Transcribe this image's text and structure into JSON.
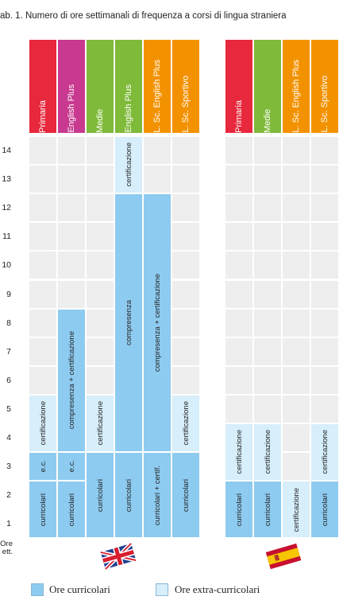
{
  "title": "ab. 1.  Numero di ore settimanali di frequenza a corsi di lingua straniera",
  "hours_axis": {
    "labels": [
      "14",
      "13",
      "12",
      "11",
      "10",
      "9",
      "8",
      "7",
      "6",
      "5",
      "4",
      "3",
      "2",
      "1"
    ],
    "footer": [
      "Ore",
      "ett."
    ]
  },
  "colors": {
    "red": "#e8283c",
    "purple": "#c8398f",
    "green": "#7fba3a",
    "orange": "#f39200",
    "curricolari": "#8ecbf0",
    "extra": "#d7eefb",
    "empty": "#eeeeee"
  },
  "english_group": {
    "flag": "uk-flag-icon",
    "columns": [
      {
        "label": "Primaria",
        "color": "red",
        "bars": [
          {
            "label": "curricolari",
            "from": 1,
            "to": 2,
            "kind": "curricolari"
          },
          {
            "label": "e.c.",
            "from": 3,
            "to": 3,
            "kind": "curricolari"
          },
          {
            "label": "certificazione",
            "from": 4,
            "to": 5,
            "kind": "extra"
          }
        ]
      },
      {
        "label": "English Plus",
        "color": "purple",
        "bars": [
          {
            "label": "curricolari",
            "from": 1,
            "to": 2,
            "kind": "curricolari"
          },
          {
            "label": "e.c.",
            "from": 3,
            "to": 3,
            "kind": "curricolari"
          },
          {
            "label": "compresenza + certificazione",
            "from": 4,
            "to": 8,
            "kind": "curricolari"
          }
        ]
      },
      {
        "label": "Medie",
        "color": "green",
        "bars": [
          {
            "label": "curricolari",
            "from": 1,
            "to": 3,
            "kind": "curricolari"
          },
          {
            "label": "certificazione",
            "from": 4,
            "to": 5,
            "kind": "extra"
          }
        ]
      },
      {
        "label": "English Plus",
        "color": "green",
        "bars": [
          {
            "label": "curricolari",
            "from": 1,
            "to": 3,
            "kind": "curricolari"
          },
          {
            "label": "compresenza",
            "from": 4,
            "to": 12,
            "kind": "curricolari"
          },
          {
            "label": "certificazione",
            "from": 13,
            "to": 14,
            "kind": "extra"
          }
        ]
      },
      {
        "label": "L. Sc. English Plus",
        "color": "orange",
        "bars": [
          {
            "label": "curricolari + certif.",
            "from": 1,
            "to": 3,
            "kind": "curricolari"
          },
          {
            "label": "compresenza + certificazione",
            "from": 4,
            "to": 12,
            "kind": "curricolari"
          }
        ]
      },
      {
        "label": "L. Sc. Sportivo",
        "color": "orange",
        "bars": [
          {
            "label": "curricolari",
            "from": 1,
            "to": 3,
            "kind": "curricolari"
          },
          {
            "label": "certificazione",
            "from": 4,
            "to": 5,
            "kind": "extra"
          }
        ]
      }
    ]
  },
  "spanish_group": {
    "flag": "spain-flag-icon",
    "columns": [
      {
        "label": "Primaria",
        "color": "red",
        "bars": [
          {
            "label": "curricolari",
            "from": 1,
            "to": 2,
            "kind": "curricolari"
          },
          {
            "label": "certificazione",
            "from": 3,
            "to": 4,
            "kind": "extra"
          }
        ]
      },
      {
        "label": "Medie",
        "color": "green",
        "bars": [
          {
            "label": "curricolari",
            "from": 1,
            "to": 2,
            "kind": "curricolari"
          },
          {
            "label": "certificazione",
            "from": 3,
            "to": 4,
            "kind": "extra"
          }
        ]
      },
      {
        "label": "L. Sc. English Plus",
        "color": "orange",
        "bars": [
          {
            "label": "certificazione",
            "from": 1,
            "to": 2,
            "kind": "extra"
          }
        ]
      },
      {
        "label": "L. Sc. Sportivo",
        "color": "orange",
        "bars": [
          {
            "label": "curricolari",
            "from": 1,
            "to": 2,
            "kind": "curricolari"
          },
          {
            "label": "certificazione",
            "from": 3,
            "to": 4,
            "kind": "extra"
          }
        ]
      }
    ]
  },
  "legend": {
    "curricolari": "Ore curricolari",
    "extra": "Ore extra-curricolari"
  }
}
